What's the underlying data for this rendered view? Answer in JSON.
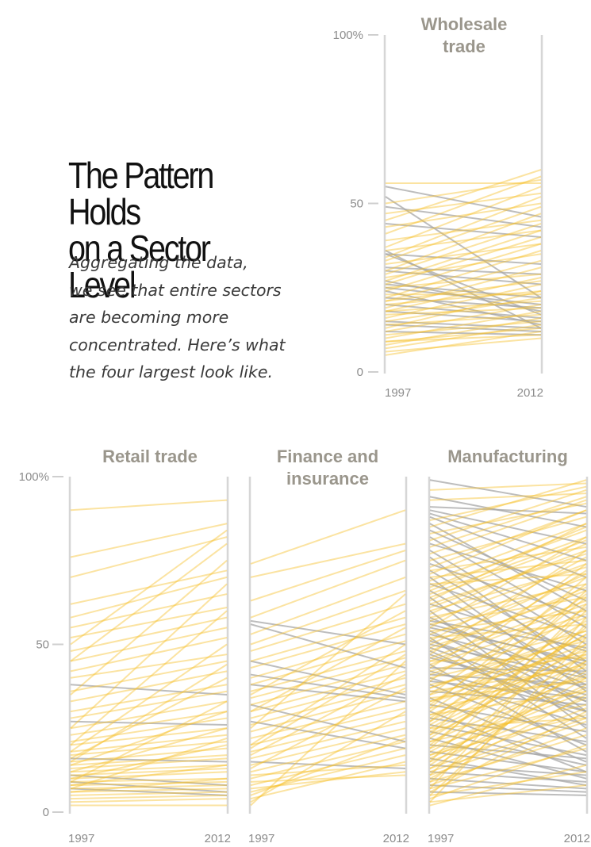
{
  "headline": [
    "The Pattern Holds",
    "on a Sector Level"
  ],
  "subhead": [
    "Aggregating the data,",
    "we see that entire sectors",
    "are becoming more",
    "concentrated. Here’s what",
    "the four largest look like."
  ],
  "colors": {
    "increase": "#f6c12e",
    "decrease": "#a7a7a7",
    "axis": "#d6d6d6",
    "title": "#9a968c"
  },
  "chart_data": [
    {
      "type": "slope",
      "title": [
        "Wholesale",
        "trade"
      ],
      "x": [
        "1997",
        "2012"
      ],
      "yticks": [
        "100%",
        "50",
        "0"
      ],
      "ylim": [
        0,
        100
      ],
      "lines": [
        [
          56,
          56
        ],
        [
          55,
          46
        ],
        [
          52,
          22
        ],
        [
          36,
          13
        ],
        [
          35,
          17
        ],
        [
          27,
          18
        ],
        [
          24,
          14
        ],
        [
          5,
          12
        ],
        [
          7,
          14
        ],
        [
          8,
          16
        ],
        [
          9,
          13
        ],
        [
          10,
          18
        ],
        [
          11,
          15
        ],
        [
          12,
          20
        ],
        [
          13,
          24
        ],
        [
          14,
          17
        ],
        [
          15,
          22
        ],
        [
          16,
          26
        ],
        [
          17,
          19
        ],
        [
          18,
          28
        ],
        [
          18,
          21
        ],
        [
          19,
          31
        ],
        [
          20,
          24
        ],
        [
          21,
          33
        ],
        [
          21,
          27
        ],
        [
          22,
          36
        ],
        [
          23,
          23
        ],
        [
          24,
          38
        ],
        [
          25,
          29
        ],
        [
          26,
          40
        ],
        [
          27,
          42
        ],
        [
          28,
          35
        ],
        [
          29,
          44
        ],
        [
          30,
          47
        ],
        [
          32,
          38
        ],
        [
          33,
          49
        ],
        [
          34,
          52
        ],
        [
          36,
          42
        ],
        [
          37,
          55
        ],
        [
          39,
          45
        ],
        [
          41,
          58
        ],
        [
          43,
          50
        ],
        [
          45,
          60
        ],
        [
          47,
          53
        ],
        [
          49,
          43
        ],
        [
          50,
          57
        ],
        [
          12,
          11
        ],
        [
          15,
          13
        ],
        [
          20,
          16
        ],
        [
          25,
          20
        ],
        [
          30,
          26
        ],
        [
          35,
          32
        ],
        [
          44,
          40
        ],
        [
          18,
          15
        ],
        [
          22,
          19
        ],
        [
          6,
          10
        ],
        [
          9,
          11
        ],
        [
          14,
          12
        ],
        [
          26,
          22
        ],
        [
          31,
          29
        ]
      ]
    },
    {
      "type": "slope",
      "title": [
        "Retail trade"
      ],
      "x": [
        "1997",
        "2012"
      ],
      "yticks": [
        "100%",
        "50",
        "0"
      ],
      "ylim": [
        0,
        100
      ],
      "lines": [
        [
          38,
          35
        ],
        [
          27,
          26
        ],
        [
          16,
          15
        ],
        [
          11,
          8
        ],
        [
          9,
          6
        ],
        [
          7,
          5
        ],
        [
          2,
          2
        ],
        [
          90,
          93
        ],
        [
          76,
          86
        ],
        [
          70,
          82
        ],
        [
          62,
          72
        ],
        [
          58,
          70
        ],
        [
          55,
          65
        ],
        [
          52,
          61
        ],
        [
          48,
          58
        ],
        [
          45,
          55
        ],
        [
          42,
          52
        ],
        [
          40,
          47
        ],
        [
          36,
          45
        ],
        [
          33,
          42
        ],
        [
          30,
          38
        ],
        [
          28,
          36
        ],
        [
          25,
          33
        ],
        [
          23,
          30
        ],
        [
          21,
          28
        ],
        [
          20,
          25
        ],
        [
          18,
          23
        ],
        [
          17,
          21
        ],
        [
          15,
          19
        ],
        [
          14,
          17
        ],
        [
          13,
          16
        ],
        [
          12,
          14
        ],
        [
          11,
          13
        ],
        [
          10,
          12
        ],
        [
          9,
          10
        ],
        [
          8,
          9
        ],
        [
          7,
          8
        ],
        [
          6,
          7
        ],
        [
          5,
          6
        ],
        [
          4,
          5
        ],
        [
          3,
          4
        ],
        [
          10,
          20
        ],
        [
          12,
          25
        ],
        [
          14,
          30
        ],
        [
          16,
          40
        ],
        [
          18,
          50
        ],
        [
          8,
          14
        ],
        [
          6,
          10
        ],
        [
          20,
          60
        ],
        [
          25,
          68
        ],
        [
          35,
          75
        ],
        [
          45,
          80
        ],
        [
          50,
          84
        ],
        [
          15,
          44
        ],
        [
          9,
          33
        ],
        [
          7,
          22
        ]
      ]
    },
    {
      "type": "slope",
      "title": [
        "Finance and",
        "insurance"
      ],
      "x": [
        "1997",
        "2012"
      ],
      "yticks": [
        "100%",
        "50",
        "0"
      ],
      "ylim": [
        0,
        100
      ],
      "lines": [
        [
          57,
          50
        ],
        [
          56,
          43
        ],
        [
          45,
          35
        ],
        [
          41,
          34
        ],
        [
          38,
          33
        ],
        [
          32,
          21
        ],
        [
          27,
          19
        ],
        [
          15,
          13
        ],
        [
          74,
          90
        ],
        [
          70,
          80
        ],
        [
          63,
          78
        ],
        [
          58,
          75
        ],
        [
          53,
          70
        ],
        [
          50,
          66
        ],
        [
          48,
          62
        ],
        [
          45,
          58
        ],
        [
          43,
          56
        ],
        [
          40,
          53
        ],
        [
          38,
          51
        ],
        [
          36,
          48
        ],
        [
          34,
          46
        ],
        [
          32,
          44
        ],
        [
          30,
          42
        ],
        [
          28,
          40
        ],
        [
          26,
          38
        ],
        [
          24,
          36
        ],
        [
          22,
          33
        ],
        [
          20,
          31
        ],
        [
          18,
          29
        ],
        [
          16,
          27
        ],
        [
          14,
          25
        ],
        [
          12,
          23
        ],
        [
          10,
          21
        ],
        [
          8,
          19
        ],
        [
          6,
          17
        ],
        [
          4,
          15
        ],
        [
          2,
          45
        ],
        [
          3,
          30
        ],
        [
          5,
          22
        ],
        [
          7,
          12
        ],
        [
          9,
          11
        ],
        [
          11,
          14
        ],
        [
          25,
          65
        ],
        [
          35,
          60
        ],
        [
          30,
          55
        ],
        [
          20,
          50
        ],
        [
          19,
          47
        ],
        [
          17,
          41
        ],
        [
          13,
          37
        ]
      ]
    },
    {
      "type": "slope",
      "title": [
        "Manufacturing"
      ],
      "x": [
        "1997",
        "2012"
      ],
      "yticks": [
        "100%",
        "50",
        "0"
      ],
      "ylim": [
        0,
        100
      ],
      "lines": [
        [
          99,
          91
        ],
        [
          94,
          85
        ],
        [
          91,
          89
        ],
        [
          90,
          80
        ],
        [
          89,
          75
        ],
        [
          88,
          70
        ],
        [
          86,
          60
        ],
        [
          84,
          63
        ],
        [
          82,
          55
        ],
        [
          80,
          66
        ],
        [
          78,
          50
        ],
        [
          76,
          42
        ],
        [
          74,
          58
        ],
        [
          72,
          45
        ],
        [
          70,
          36
        ],
        [
          68,
          52
        ],
        [
          66,
          40
        ],
        [
          64,
          30
        ],
        [
          62,
          48
        ],
        [
          60,
          25
        ],
        [
          58,
          38
        ],
        [
          56,
          44
        ],
        [
          54,
          33
        ],
        [
          52,
          22
        ],
        [
          50,
          40
        ],
        [
          48,
          28
        ],
        [
          46,
          35
        ],
        [
          44,
          18
        ],
        [
          42,
          30
        ],
        [
          40,
          26
        ],
        [
          38,
          20
        ],
        [
          36,
          32
        ],
        [
          34,
          15
        ],
        [
          32,
          24
        ],
        [
          30,
          12
        ],
        [
          28,
          21
        ],
        [
          26,
          17
        ],
        [
          24,
          14
        ],
        [
          22,
          10
        ],
        [
          20,
          16
        ],
        [
          18,
          12
        ],
        [
          16,
          8
        ],
        [
          14,
          11
        ],
        [
          12,
          9
        ],
        [
          10,
          7
        ],
        [
          8,
          6
        ],
        [
          6,
          5
        ],
        [
          96,
          98
        ],
        [
          93,
          95
        ],
        [
          87,
          97
        ],
        [
          83,
          92
        ],
        [
          79,
          94
        ],
        [
          75,
          88
        ],
        [
          71,
          90
        ],
        [
          67,
          84
        ],
        [
          63,
          86
        ],
        [
          59,
          80
        ],
        [
          55,
          82
        ],
        [
          51,
          76
        ],
        [
          47,
          78
        ],
        [
          43,
          72
        ],
        [
          39,
          74
        ],
        [
          35,
          68
        ],
        [
          31,
          70
        ],
        [
          27,
          64
        ],
        [
          23,
          66
        ],
        [
          19,
          60
        ],
        [
          15,
          62
        ],
        [
          11,
          56
        ],
        [
          7,
          58
        ],
        [
          3,
          52
        ],
        [
          5,
          48
        ],
        [
          9,
          44
        ],
        [
          13,
          40
        ],
        [
          17,
          36
        ],
        [
          21,
          32
        ],
        [
          25,
          28
        ],
        [
          29,
          46
        ],
        [
          33,
          50
        ],
        [
          37,
          54
        ],
        [
          41,
          58
        ],
        [
          45,
          62
        ],
        [
          49,
          66
        ],
        [
          53,
          70
        ],
        [
          57,
          74
        ],
        [
          61,
          78
        ],
        [
          65,
          82
        ],
        [
          69,
          86
        ],
        [
          73,
          90
        ],
        [
          77,
          93
        ],
        [
          81,
          96
        ],
        [
          85,
          99
        ],
        [
          4,
          20
        ],
        [
          6,
          30
        ],
        [
          8,
          25
        ],
        [
          10,
          35
        ],
        [
          12,
          28
        ],
        [
          14,
          45
        ],
        [
          16,
          38
        ],
        [
          18,
          42
        ],
        [
          20,
          55
        ],
        [
          22,
          50
        ],
        [
          24,
          47
        ],
        [
          26,
          53
        ],
        [
          28,
          57
        ],
        [
          30,
          61
        ],
        [
          32,
          65
        ],
        [
          34,
          39
        ],
        [
          36,
          43
        ],
        [
          38,
          47
        ],
        [
          40,
          51
        ],
        [
          42,
          54
        ],
        [
          44,
          59
        ],
        [
          46,
          63
        ],
        [
          48,
          67
        ],
        [
          50,
          71
        ],
        [
          52,
          56
        ],
        [
          54,
          60
        ],
        [
          56,
          64
        ],
        [
          58,
          68
        ],
        [
          60,
          73
        ],
        [
          62,
          77
        ],
        [
          64,
          81
        ],
        [
          66,
          85
        ],
        [
          68,
          71
        ],
        [
          70,
          75
        ],
        [
          72,
          79
        ],
        [
          2,
          14
        ],
        [
          3,
          8
        ],
        [
          5,
          12
        ],
        [
          7,
          19
        ],
        [
          9,
          23
        ],
        [
          11,
          27
        ],
        [
          13,
          31
        ],
        [
          15,
          34
        ],
        [
          17,
          29
        ],
        [
          19,
          37
        ],
        [
          21,
          41
        ],
        [
          23,
          45
        ],
        [
          25,
          49
        ],
        [
          27,
          53
        ],
        [
          29,
          36
        ],
        [
          31,
          40
        ],
        [
          33,
          44
        ],
        [
          35,
          48
        ],
        [
          37,
          52
        ],
        [
          39,
          34
        ],
        [
          41,
          38
        ],
        [
          43,
          42
        ],
        [
          45,
          46
        ],
        [
          47,
          30
        ],
        [
          49,
          33
        ],
        [
          51,
          37
        ],
        [
          53,
          41
        ],
        [
          55,
          45
        ],
        [
          57,
          49
        ]
      ]
    }
  ]
}
